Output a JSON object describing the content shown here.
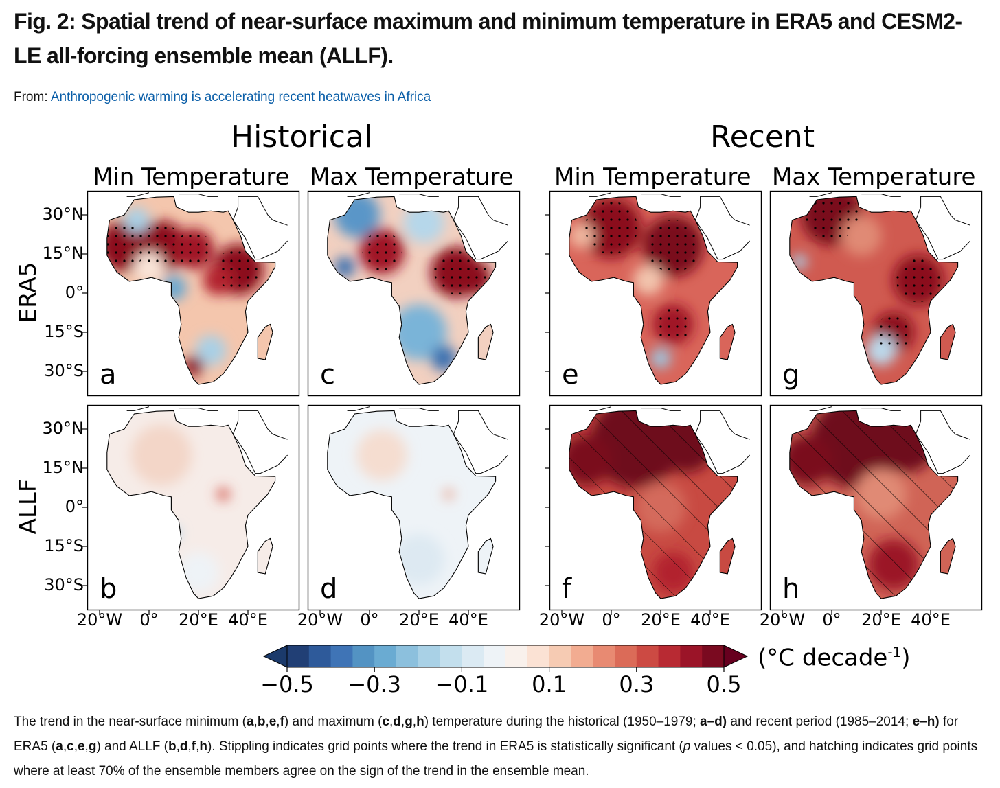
{
  "title": "Fig. 2: Spatial trend of near-surface maximum and minimum temperature in ERA5 and CESM2-LE all-forcing ensemble mean (ALLF).",
  "from": {
    "label": "From:",
    "link_text": "Anthropogenic warming is accelerating recent heatwaves in Africa"
  },
  "figure": {
    "groups": [
      "Historical",
      "Recent"
    ],
    "columns": [
      "Min Temperature",
      "Max Temperature",
      "Min Temperature",
      "Max Temperature"
    ],
    "rows": [
      "ERA5",
      "ALLF"
    ],
    "lat_ticks": [
      "30°N",
      "15°N",
      "0°",
      "15°S",
      "30°S"
    ],
    "lon_ticks": [
      "20°W",
      "0°",
      "20°E",
      "40°E"
    ],
    "panels": [
      {
        "letter": "a",
        "row": "ERA5",
        "period": "Historical",
        "variable": "Min"
      },
      {
        "letter": "c",
        "row": "ERA5",
        "period": "Historical",
        "variable": "Max"
      },
      {
        "letter": "e",
        "row": "ERA5",
        "period": "Recent",
        "variable": "Min"
      },
      {
        "letter": "g",
        "row": "ERA5",
        "period": "Recent",
        "variable": "Max"
      },
      {
        "letter": "b",
        "row": "ALLF",
        "period": "Historical",
        "variable": "Min"
      },
      {
        "letter": "d",
        "row": "ALLF",
        "period": "Historical",
        "variable": "Max"
      },
      {
        "letter": "f",
        "row": "ALLF",
        "period": "Recent",
        "variable": "Min"
      },
      {
        "letter": "h",
        "row": "ALLF",
        "period": "Recent",
        "variable": "Max"
      }
    ],
    "colorbar": {
      "range": [
        -0.5,
        0.5
      ],
      "ticks": [
        "−0.5",
        "−0.3",
        "−0.1",
        "0.1",
        "0.3",
        "0.5"
      ],
      "tick_values": [
        -0.5,
        -0.3,
        -0.1,
        0.1,
        0.3,
        0.5
      ],
      "unit_prefix": "(°C  decade",
      "unit_sup": "-1",
      "unit_suffix": ")",
      "under_color": "#1b3a6b",
      "over_color": "#67001f",
      "colors": [
        "#213f75",
        "#2e5a9a",
        "#3f74b6",
        "#5393c3",
        "#6aabd2",
        "#8cc0dd",
        "#a9d1e6",
        "#c3dfed",
        "#dbeaf3",
        "#eef3f7",
        "#f9f1ec",
        "#fbe2d4",
        "#f6cbb3",
        "#f2ac91",
        "#e88a72",
        "#db6b58",
        "#cc4a43",
        "#b82a33",
        "#9b1428",
        "#7a0a20"
      ]
    }
  },
  "caption": {
    "p1": "The trend in the near-surface minimum (",
    "b1": "a",
    "p2": ",",
    "b2": "b",
    "p3": ",",
    "b3": "e",
    "p4": ",",
    "b4": "f",
    "p5": ") and maximum (",
    "b5": "c",
    "p6": ",",
    "b6": "d",
    "p7": ",",
    "b7": "g",
    "p8": ",",
    "b8": "h",
    "p9": ") temperature during the historical (1950–1979; ",
    "b9": "a–d)",
    "p10": " and recent period (1985–2014; ",
    "b10": "e–h)",
    "p11": " for ERA5 (",
    "b11": "a",
    "p12": ",",
    "b12": "c",
    "p13": ",",
    "b13": "e",
    "p14": ",",
    "b14": "g",
    "p15": ") and ALLF (",
    "b15": "b",
    "p16": ",",
    "b16": "d",
    "p17": ",",
    "b17": "f",
    "p18": ",",
    "b18": "h",
    "p19": "). Stippling indicates grid points where the trend in ERA5 is statistically significant (",
    "i1": "p",
    "p20": " values < 0.05), and hatching indicates grid points where at least 70% of the ensemble members agree on the sign of the trend in the ensemble mean."
  }
}
